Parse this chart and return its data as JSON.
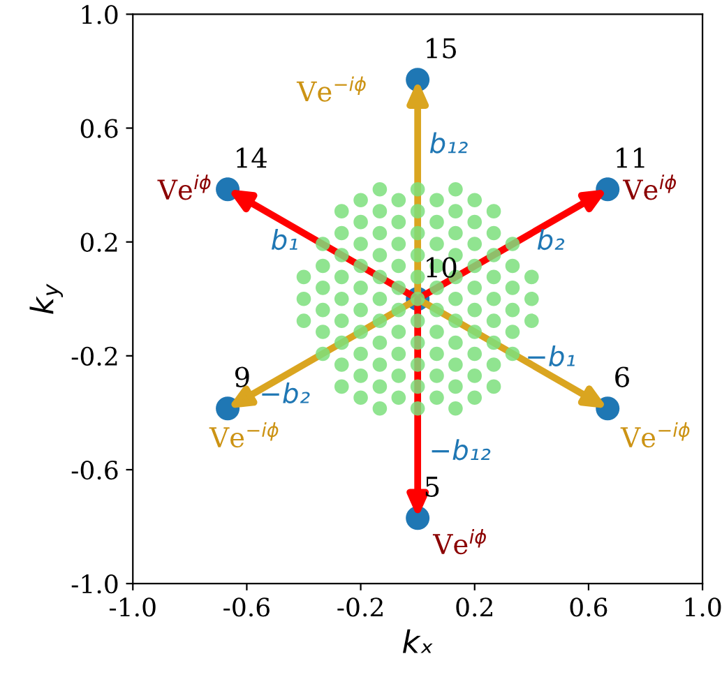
{
  "chart_data": {
    "type": "scatter",
    "xlabel": "kₓ",
    "ylabel": "k$_{y}$",
    "xlim": [
      -1.0,
      1.0
    ],
    "ylim": [
      -1.0,
      1.0
    ],
    "xticks": [
      {
        "value": -1.0,
        "label": "-1.0"
      },
      {
        "value": -0.6,
        "label": "-0.6"
      },
      {
        "value": -0.2,
        "label": "-0.2"
      },
      {
        "value": 0.2,
        "label": "0.2"
      },
      {
        "value": 0.6,
        "label": "0.6"
      },
      {
        "value": 1.0,
        "label": "1.0"
      }
    ],
    "yticks": [
      {
        "value": -1.0,
        "label": "-1.0"
      },
      {
        "value": -0.6,
        "label": "-0.6"
      },
      {
        "value": -0.2,
        "label": "-0.2"
      },
      {
        "value": 0.2,
        "label": "0.2"
      },
      {
        "value": 0.6,
        "label": "0.6"
      },
      {
        "value": 1.0,
        "label": "1.0"
      }
    ],
    "series": [
      {
        "color": "#1f77b4",
        "marker": "circle",
        "x": [
          0,
          0.667,
          -0.667,
          -0.667,
          0.667,
          0,
          0
        ],
        "values": [
          0.77,
          0.385,
          0.385,
          -0.385,
          -0.385,
          -0.77,
          0
        ]
      },
      {
        "color": "#7ddf7d",
        "marker": "circle",
        "x": [
          -0.4,
          -0.4,
          -0.4,
          -0.333,
          -0.333,
          -0.333,
          -0.333,
          -0.333,
          -0.333,
          -0.267,
          -0.267,
          -0.267,
          -0.267,
          -0.267,
          -0.267,
          -0.267,
          -0.267,
          -0.267,
          -0.2,
          -0.2,
          -0.2,
          -0.2,
          -0.2,
          -0.2,
          -0.2,
          -0.2,
          -0.2,
          -0.2,
          -0.133,
          -0.133,
          -0.133,
          -0.133,
          -0.133,
          -0.133,
          -0.133,
          -0.133,
          -0.133,
          -0.133,
          -0.133,
          -0.067,
          -0.067,
          -0.067,
          -0.067,
          -0.067,
          -0.067,
          -0.067,
          -0.067,
          -0.067,
          -0.067,
          0,
          0,
          0,
          0,
          0,
          0,
          0,
          0,
          0,
          0,
          0,
          0.067,
          0.067,
          0.067,
          0.067,
          0.067,
          0.067,
          0.067,
          0.067,
          0.067,
          0.067,
          0.133,
          0.133,
          0.133,
          0.133,
          0.133,
          0.133,
          0.133,
          0.133,
          0.133,
          0.133,
          0.133,
          0.2,
          0.2,
          0.2,
          0.2,
          0.2,
          0.2,
          0.2,
          0.2,
          0.2,
          0.2,
          0.267,
          0.267,
          0.267,
          0.267,
          0.267,
          0.267,
          0.267,
          0.267,
          0.267,
          0.333,
          0.333,
          0.333,
          0.333,
          0.333,
          0.333,
          0.4,
          0.4,
          0.4
        ],
        "values": [
          -0.077,
          0,
          0.077,
          -0.193,
          -0.116,
          -0.039,
          0.039,
          0.116,
          0.193,
          -0.308,
          -0.231,
          -0.154,
          -0.077,
          0,
          0.077,
          0.154,
          0.231,
          0.308,
          -0.347,
          -0.27,
          -0.193,
          -0.116,
          -0.039,
          0.039,
          0.116,
          0.193,
          0.27,
          0.347,
          -0.385,
          -0.308,
          -0.231,
          -0.154,
          -0.077,
          0,
          0.077,
          0.154,
          0.231,
          0.308,
          0.385,
          -0.347,
          -0.27,
          -0.193,
          -0.116,
          -0.039,
          0.039,
          0.116,
          0.193,
          0.27,
          0.347,
          -0.385,
          -0.308,
          -0.231,
          -0.154,
          -0.077,
          0,
          0.077,
          0.154,
          0.231,
          0.308,
          0.385,
          -0.347,
          -0.27,
          -0.193,
          -0.116,
          -0.039,
          0.039,
          0.116,
          0.193,
          0.27,
          0.347,
          -0.385,
          -0.308,
          -0.231,
          -0.154,
          -0.077,
          0,
          0.077,
          0.154,
          0.231,
          0.308,
          0.385,
          -0.347,
          -0.27,
          -0.193,
          -0.116,
          -0.039,
          0.039,
          0.116,
          0.193,
          0.27,
          0.347,
          -0.308,
          -0.231,
          -0.154,
          -0.077,
          0,
          0.077,
          0.154,
          0.231,
          0.308,
          -0.193,
          -0.116,
          -0.039,
          0.039,
          0.116,
          0.193,
          -0.077,
          0,
          0.077
        ]
      }
    ],
    "annotations": [
      {
        "text": "15",
        "x": 0,
        "y": 0.77
      },
      {
        "text": "11",
        "x": 0.667,
        "y": 0.385
      },
      {
        "text": "14",
        "x": -0.667,
        "y": 0.385
      },
      {
        "text": "9",
        "x": -0.667,
        "y": -0.385
      },
      {
        "text": "6",
        "x": 0.667,
        "y": -0.385
      },
      {
        "text": "5",
        "x": 0,
        "y": -0.77
      },
      {
        "text": "10",
        "x": 0,
        "y": 0
      },
      "b₁₂",
      "b₂",
      "b₁",
      "−b₂",
      "−b₁",
      "−b₁₂",
      {
        "text": "Ve$^{−iϕ}$",
        "x": 0,
        "y": 0.77
      },
      {
        "text": "Ve$^{iϕ}$",
        "x": -0.667,
        "y": 0.385
      },
      {
        "text": "Ve$^{iϕ}$",
        "x": 0.667,
        "y": 0.385
      },
      {
        "text": "Ve$^{−iϕ}$",
        "x": -0.667,
        "y": -0.385
      },
      {
        "text": "Ve$^{−iϕ}$",
        "x": 0.667,
        "y": -0.385
      },
      {
        "text": "Ve$^{iϕ}$",
        "x": 0,
        "y": -0.77
      }
    ]
  }
}
